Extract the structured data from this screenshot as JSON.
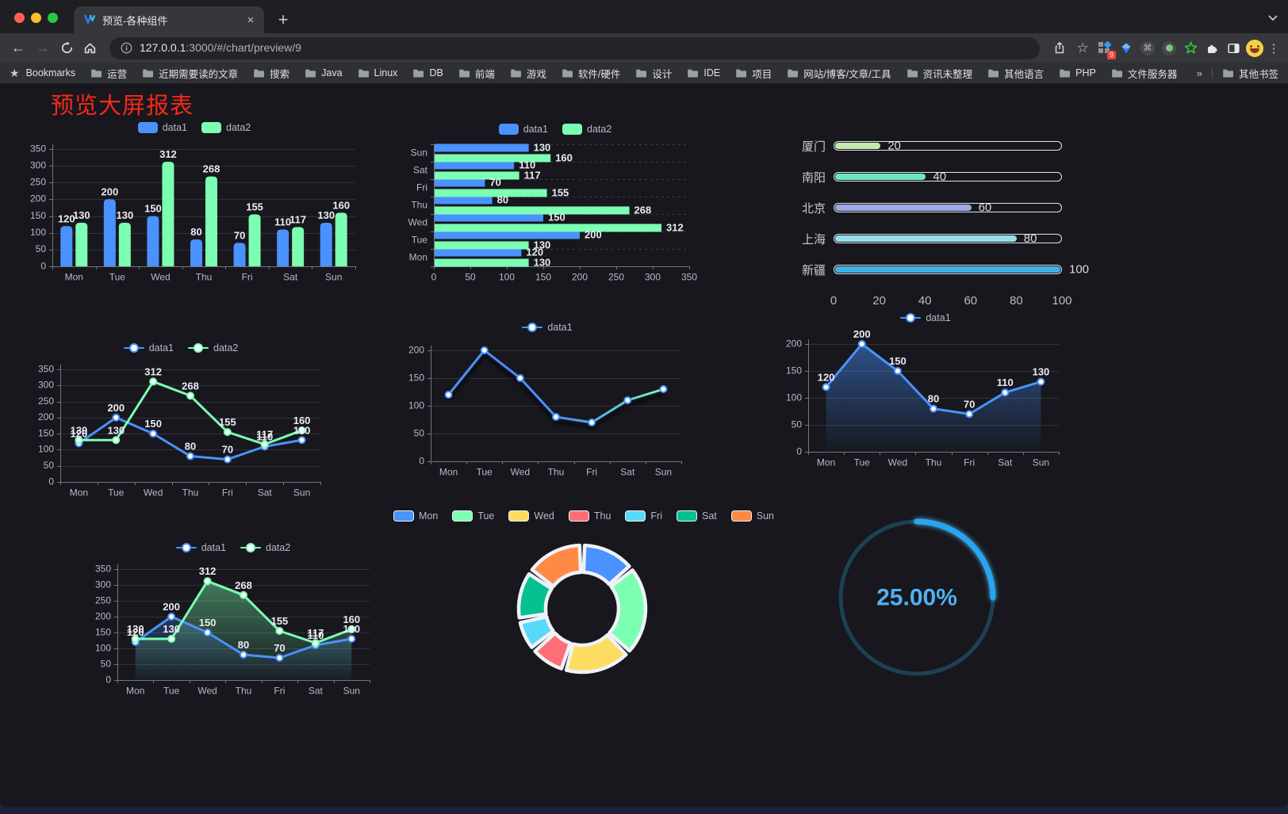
{
  "colors": {
    "page_bg": "#17171d",
    "frame_bg": "#1e1f22",
    "toolbar_bg": "#36373b",
    "urlbar_bg": "#232427",
    "bookmarks_bg": "#2f3034",
    "title_red": "#f5291b",
    "data1_blue": "#4992ff",
    "data2_green": "#7cffb2",
    "axis_text": "#b9b8ce",
    "grid_line": "#31313d",
    "gauge_blue": "#28a5f0",
    "gauge_track": "#1d4152",
    "gauge_text": "#4fb1f3",
    "traffic_red": "#ff5f57",
    "traffic_yellow": "#febc2e",
    "traffic_green": "#28c840"
  },
  "browser": {
    "tab_title": "预览-各种组件",
    "url_host": "127.0.0.1",
    "url_rest": ":3000/#/chart/preview/9",
    "extension_badge": "9",
    "icons": {
      "back": "←",
      "forward": "→",
      "menu": "⋮",
      "star": "☆",
      "bookmarks_star": "★",
      "close": "×",
      "new_tab": "+",
      "cmd": "⌘",
      "overflow": "»"
    },
    "bookmarks_label": "Bookmarks",
    "bookmarks": [
      "运营",
      "近期需要读的文章",
      "搜索",
      "Java",
      "Linux",
      "DB",
      "前端",
      "游戏",
      "软件/硬件",
      "设计",
      "IDE",
      "项目",
      "网站/博客/文章/工具",
      "资讯未整理",
      "其他语言",
      "PHP",
      "文件服务器"
    ],
    "other_bookmarks": "其他书签"
  },
  "page": {
    "title": "预览大屏报表"
  },
  "chart_data": [
    {
      "id": "bar-vertical",
      "type": "bar",
      "categories": [
        "Mon",
        "Tue",
        "Wed",
        "Thu",
        "Fri",
        "Sat",
        "Sun"
      ],
      "series": [
        {
          "name": "data1",
          "color": "#4992ff",
          "values": [
            120,
            200,
            150,
            80,
            70,
            110,
            130
          ]
        },
        {
          "name": "data2",
          "color": "#7cffb2",
          "values": [
            130,
            130,
            312,
            268,
            155,
            117,
            160
          ]
        }
      ],
      "ylim": [
        0,
        350
      ],
      "yticks": [
        0,
        50,
        100,
        150,
        200,
        250,
        300,
        350
      ],
      "value_labels": true,
      "legend_position": "top",
      "grid": true
    },
    {
      "id": "bar-horizontal",
      "type": "bar",
      "orientation": "horizontal",
      "categories": [
        "Mon",
        "Tue",
        "Wed",
        "Thu",
        "Fri",
        "Sat",
        "Sun"
      ],
      "series": [
        {
          "name": "data1",
          "color": "#4992ff",
          "values": [
            120,
            200,
            150,
            80,
            70,
            110,
            130
          ]
        },
        {
          "name": "data2",
          "color": "#7cffb2",
          "values": [
            130,
            130,
            312,
            268,
            155,
            117,
            160
          ]
        }
      ],
      "xlim": [
        0,
        350
      ],
      "xticks": [
        0,
        50,
        100,
        150,
        200,
        250,
        300,
        350
      ],
      "value_labels": true,
      "legend_position": "top",
      "grid": true
    },
    {
      "id": "progress-bars",
      "type": "bar",
      "subtype": "progress-horizontal",
      "rows": [
        {
          "label": "厦门",
          "value": 20,
          "color": "#c4ebad"
        },
        {
          "label": "南阳",
          "value": 40,
          "color": "#6be6c1"
        },
        {
          "label": "北京",
          "value": 60,
          "color": "#a0a7e6"
        },
        {
          "label": "上海",
          "value": 80,
          "color": "#96dee8"
        },
        {
          "label": "新疆",
          "value": 100,
          "color": "#3fb1e3"
        }
      ],
      "xlim": [
        0,
        100
      ],
      "xticks": [
        0,
        20,
        40,
        60,
        80,
        100
      ]
    },
    {
      "id": "line-dual",
      "type": "line",
      "categories": [
        "Mon",
        "Tue",
        "Wed",
        "Thu",
        "Fri",
        "Sat",
        "Sun"
      ],
      "series": [
        {
          "name": "data1",
          "color": "#4992ff",
          "values": [
            120,
            200,
            150,
            80,
            70,
            110,
            130
          ]
        },
        {
          "name": "data2",
          "color": "#7cffb2",
          "values": [
            130,
            130,
            312,
            268,
            155,
            117,
            160
          ]
        }
      ],
      "ylim": [
        0,
        350
      ],
      "yticks": [
        0,
        50,
        100,
        150,
        200,
        250,
        300,
        350
      ],
      "value_labels": true,
      "markers": true,
      "legend_position": "top",
      "grid": true
    },
    {
      "id": "line-single-gradient",
      "type": "line",
      "categories": [
        "Mon",
        "Tue",
        "Wed",
        "Thu",
        "Fri",
        "Sat",
        "Sun"
      ],
      "series": [
        {
          "name": "data1",
          "color": "#4992ff",
          "color_end": "#7cffb2",
          "values": [
            120,
            200,
            150,
            80,
            70,
            110,
            130
          ]
        }
      ],
      "ylim": [
        0,
        200
      ],
      "yticks": [
        0,
        50,
        100,
        150,
        200
      ],
      "value_labels": false,
      "markers": true,
      "legend_position": "top",
      "grid": true
    },
    {
      "id": "area-single",
      "type": "area",
      "categories": [
        "Mon",
        "Tue",
        "Wed",
        "Thu",
        "Fri",
        "Sat",
        "Sun"
      ],
      "series": [
        {
          "name": "data1",
          "color": "#4992ff",
          "values": [
            120,
            200,
            150,
            80,
            70,
            110,
            130
          ]
        }
      ],
      "ylim": [
        0,
        200
      ],
      "yticks": [
        0,
        50,
        100,
        150,
        200
      ],
      "value_labels": true,
      "markers": true,
      "legend_position": "top",
      "grid": true
    },
    {
      "id": "area-dual",
      "type": "area",
      "categories": [
        "Mon",
        "Tue",
        "Wed",
        "Thu",
        "Fri",
        "Sat",
        "Sun"
      ],
      "series": [
        {
          "name": "data1",
          "color": "#4992ff",
          "values": [
            120,
            200,
            150,
            80,
            70,
            110,
            130
          ]
        },
        {
          "name": "data2",
          "color": "#7cffb2",
          "values": [
            130,
            130,
            312,
            268,
            155,
            117,
            160
          ]
        }
      ],
      "ylim": [
        0,
        350
      ],
      "yticks": [
        0,
        50,
        100,
        150,
        200,
        250,
        300,
        350
      ],
      "value_labels": true,
      "markers": true,
      "legend_position": "top",
      "grid": true
    },
    {
      "id": "pie-donut",
      "type": "pie",
      "categories": [
        "Mon",
        "Tue",
        "Wed",
        "Thu",
        "Fri",
        "Sat",
        "Sun"
      ],
      "values": [
        120,
        200,
        150,
        80,
        70,
        110,
        130
      ],
      "colors": [
        "#4992ff",
        "#7cffb2",
        "#fddd60",
        "#ff6e76",
        "#58d9f9",
        "#05c091",
        "#ff8a45"
      ],
      "donut": true,
      "legend_position": "top"
    },
    {
      "id": "gauge",
      "type": "gauge",
      "value": 25,
      "max": 100,
      "label": "25.00%",
      "color": "#28a5f0",
      "track_color": "#1d4152"
    }
  ]
}
